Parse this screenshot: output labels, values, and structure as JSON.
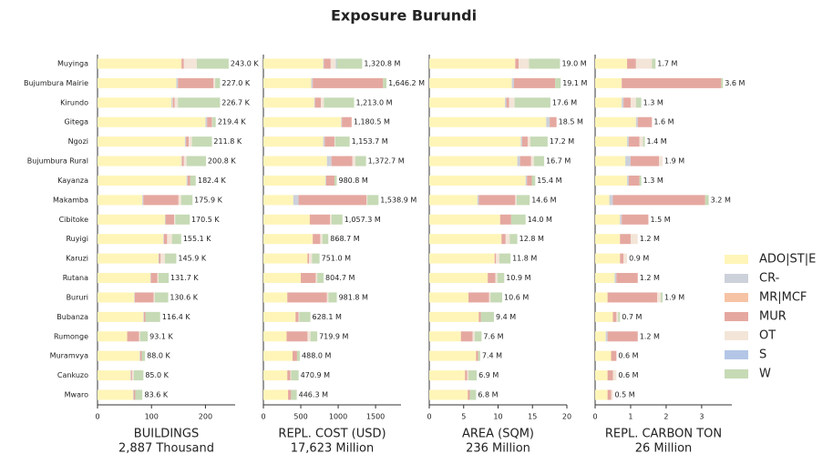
{
  "title": "Exposure Burundi",
  "chart_data": [
    {
      "type": "stacked-barh",
      "xlabel": "BUILDINGS",
      "subtitle": "2,887 Thousand",
      "categories": [
        "Muyinga",
        "Bujumbura Mairie",
        "Kirundo",
        "Gitega",
        "Ngozi",
        "Bujumbura Rural",
        "Kayanza",
        "Makamba",
        "Cibitoke",
        "Ruyigi",
        "Karuzi",
        "Rutana",
        "Bururi",
        "Bubanza",
        "Rumonge",
        "Muramvya",
        "Cankuzo",
        "Mwaro"
      ],
      "xlim": [
        0,
        255
      ],
      "xticks": [
        0,
        100,
        200
      ],
      "series": [
        {
          "name": "ADO|ST|E",
          "color": "#fff5b8",
          "values": [
            155,
            146,
            137,
            200,
            162,
            155,
            165,
            83,
            125,
            122,
            113,
            98,
            68,
            85,
            55,
            78,
            61,
            66
          ]
        },
        {
          "name": "CR-",
          "color": "#ccd1da",
          "values": [
            0,
            3,
            2,
            3,
            2,
            1,
            2,
            2,
            1,
            1,
            1,
            1,
            1,
            1,
            0,
            1,
            1,
            1
          ]
        },
        {
          "name": "MR|MCF",
          "color": "#f6c3a5",
          "values": [
            1,
            0,
            1,
            0,
            0,
            1,
            0,
            0,
            0,
            0,
            0,
            0,
            0,
            0,
            0,
            0,
            0,
            0
          ]
        },
        {
          "name": "MUR",
          "color": "#e5a8a0",
          "values": [
            4,
            66,
            3,
            9,
            5,
            3,
            5,
            65,
            16,
            6,
            3,
            12,
            35,
            3,
            22,
            3,
            2,
            3
          ]
        },
        {
          "name": "OT",
          "color": "#f3e5d8",
          "values": [
            24,
            3,
            6,
            1,
            6,
            5,
            0,
            5,
            2,
            9,
            8,
            2,
            2,
            0,
            2,
            0,
            3,
            0
          ]
        },
        {
          "name": "S",
          "color": "#b3c6e6",
          "values": [
            0,
            0,
            0,
            0,
            0,
            0,
            0,
            0,
            0,
            0,
            0,
            0,
            0,
            0,
            0,
            0,
            0,
            0
          ]
        },
        {
          "name": "W",
          "color": "#c6dab5",
          "values": [
            59,
            9,
            78,
            6,
            37,
            36,
            10,
            21,
            27,
            17,
            21,
            19,
            25,
            27,
            14,
            6,
            18,
            13
          ]
        }
      ],
      "totals": {
        "values": [
          243.0,
          227.0,
          226.7,
          219.4,
          211.8,
          200.8,
          182.4,
          175.9,
          170.5,
          155.1,
          145.9,
          131.7,
          130.6,
          116.4,
          93.1,
          88.0,
          85.0,
          83.6
        ],
        "value_labels": [
          "243.0 K",
          "227.0 K",
          "226.7 K",
          "219.4 K",
          "211.8 K",
          "200.8 K",
          "182.4 K",
          "175.9 K",
          "170.5 K",
          "155.1 K",
          "145.9 K",
          "131.7 K",
          "130.6 K",
          "116.4 K",
          "93.1 K",
          "88.0 K",
          "85.0 K",
          "83.6 K"
        ]
      }
    },
    {
      "type": "stacked-barh",
      "xlabel": "REPL. COST (USD)",
      "subtitle": "17,623 Million",
      "xlim": [
        0,
        1840
      ],
      "xticks": [
        0,
        500,
        1000,
        1500
      ],
      "series": [
        {
          "name": "ADO|ST|E",
          "color": "#fff5b8",
          "values": [
            800,
            640,
            680,
            1040,
            800,
            850,
            830,
            400,
            620,
            660,
            590,
            500,
            320,
            430,
            310,
            390,
            320,
            330
          ]
        },
        {
          "name": "CR-",
          "color": "#ccd1da",
          "values": [
            10,
            20,
            10,
            10,
            20,
            60,
            10,
            70,
            0,
            0,
            0,
            0,
            0,
            0,
            0,
            0,
            0,
            0
          ]
        },
        {
          "name": "MR|MCF",
          "color": "#f6c3a5",
          "values": [
            0,
            0,
            0,
            0,
            0,
            0,
            0,
            0,
            0,
            0,
            0,
            0,
            0,
            0,
            0,
            0,
            0,
            0
          ]
        },
        {
          "name": "MUR",
          "color": "#e5a8a0",
          "values": [
            90,
            940,
            80,
            130,
            130,
            280,
            110,
            910,
            270,
            100,
            20,
            200,
            530,
            40,
            280,
            60,
            40,
            40
          ]
        },
        {
          "name": "OT",
          "color": "#f3e5d8",
          "values": [
            70,
            0,
            40,
            0,
            10,
            40,
            0,
            10,
            20,
            30,
            40,
            20,
            20,
            10,
            40,
            0,
            10,
            0
          ]
        },
        {
          "name": "S",
          "color": "#b3c6e6",
          "values": [
            10,
            0,
            0,
            0,
            0,
            0,
            0,
            0,
            0,
            0,
            0,
            0,
            0,
            0,
            0,
            0,
            0,
            0
          ]
        },
        {
          "name": "W",
          "color": "#c6dab5",
          "values": [
            340.8,
            46.2,
            403,
            0.5,
            193.7,
            142.7,
            30.8,
            148.9,
            147.3,
            78.7,
            101,
            84.7,
            111.8,
            148.1,
            89.9,
            38,
            100.9,
            76.3
          ]
        }
      ],
      "totals": {
        "values": [
          1320.8,
          1646.2,
          1213.0,
          1180.5,
          1153.7,
          1372.7,
          980.8,
          1538.9,
          1057.3,
          868.7,
          751.0,
          804.7,
          981.8,
          628.1,
          719.9,
          488.0,
          470.9,
          446.3
        ],
        "value_labels": [
          "1,320.8 M",
          "1,646.2 M",
          "1,213.0 M",
          "1,180.5 M",
          "1,153.7 M",
          "1,372.7 M",
          "980.8 M",
          "1,538.9 M",
          "1,057.3 M",
          "868.7 M",
          "751.0 M",
          "804.7 M",
          "981.8 M",
          "628.1 M",
          "719.9 M",
          "488.0 M",
          "470.9 M",
          "446.3 M"
        ]
      }
    },
    {
      "type": "stacked-barh",
      "xlabel": "AREA (SQM)",
      "subtitle": "236 Million",
      "xlim": [
        0,
        20
      ],
      "xticks": [
        0,
        5,
        10,
        15,
        20
      ],
      "series": [
        {
          "name": "ADO|ST|E",
          "color": "#fff5b8",
          "values": [
            12.5,
            12,
            11,
            17,
            13.3,
            12.8,
            14,
            7,
            10.3,
            10.5,
            9.5,
            8.5,
            5.7,
            7.2,
            4.6,
            6.8,
            5.2,
            5.6
          ]
        },
        {
          "name": "CR-",
          "color": "#ccd1da",
          "values": [
            0,
            0.3,
            0.2,
            0.5,
            0.2,
            0.4,
            0.2,
            0.2,
            0,
            0,
            0,
            0,
            0,
            0,
            0,
            0,
            0,
            0
          ]
        },
        {
          "name": "MR|MCF",
          "color": "#f6c3a5",
          "values": [
            0,
            0,
            0,
            0,
            0,
            0,
            0,
            0,
            0,
            0,
            0,
            0,
            0,
            0,
            0,
            0,
            0,
            0
          ]
        },
        {
          "name": "MUR",
          "color": "#e5a8a0",
          "values": [
            0.5,
            6,
            0.4,
            1,
            0.8,
            1.6,
            0.7,
            5.3,
            1.6,
            0.6,
            0.2,
            1.1,
            3,
            0.3,
            1.7,
            0.3,
            0.3,
            0.3
          ]
        },
        {
          "name": "OT",
          "color": "#f3e5d8",
          "values": [
            1.5,
            0,
            0.8,
            0,
            0.4,
            0.4,
            0,
            0.2,
            0,
            0.6,
            0.5,
            0.3,
            0.2,
            0,
            0.3,
            0,
            0.2,
            0
          ]
        },
        {
          "name": "S",
          "color": "#b3c6e6",
          "values": [
            0,
            0,
            0,
            0,
            0,
            0,
            0,
            0,
            0,
            0,
            0,
            0,
            0,
            0,
            0,
            0,
            0,
            0
          ]
        },
        {
          "name": "W",
          "color": "#c6dab5",
          "values": [
            4.5,
            0.8,
            5.2,
            0,
            2.5,
            1.5,
            0.5,
            1.9,
            2.1,
            1.1,
            1.6,
            1,
            1.7,
            1.9,
            1,
            0.3,
            1.2,
            0.9
          ]
        }
      ],
      "totals": {
        "values": [
          19.0,
          19.1,
          17.6,
          18.5,
          17.2,
          16.7,
          15.4,
          14.6,
          14.0,
          12.8,
          11.8,
          10.9,
          10.6,
          9.4,
          7.6,
          7.4,
          6.9,
          6.8
        ],
        "value_labels": [
          "19.0 M",
          "19.1 M",
          "17.6 M",
          "18.5 M",
          "17.2 M",
          "16.7 M",
          "15.4 M",
          "14.6 M",
          "14.0 M",
          "12.8 M",
          "11.8 M",
          "10.9 M",
          "10.6 M",
          "9.4 M",
          "7.6 M",
          "7.4 M",
          "6.9 M",
          "6.8 M"
        ]
      }
    },
    {
      "type": "stacked-barh",
      "xlabel": "REPL. CARBON TON",
      "subtitle": "26 Million",
      "xlim": [
        0,
        3.85
      ],
      "xticks": [
        0,
        1,
        2,
        3
      ],
      "series": [
        {
          "name": "ADO|ST|E",
          "color": "#fff5b8",
          "values": [
            0.9,
            0.75,
            0.75,
            1.15,
            0.9,
            0.85,
            0.9,
            0.4,
            0.7,
            0.7,
            0.7,
            0.55,
            0.35,
            0.5,
            0.3,
            0.45,
            0.35,
            0.35
          ]
        },
        {
          "name": "CR-",
          "color": "#ccd1da",
          "values": [
            0,
            0,
            0.05,
            0.05,
            0.05,
            0.15,
            0.05,
            0.1,
            0.05,
            0,
            0,
            0.05,
            0,
            0,
            0.05,
            0,
            0,
            0
          ]
        },
        {
          "name": "MR|MCF",
          "color": "#f6c3a5",
          "values": [
            0,
            0,
            0,
            0,
            0,
            0,
            0,
            0,
            0,
            0,
            0,
            0,
            0,
            0,
            0,
            0,
            0,
            0
          ]
        },
        {
          "name": "MUR",
          "color": "#e5a8a0",
          "values": [
            0.25,
            2.8,
            0.2,
            0.4,
            0.3,
            0.8,
            0.3,
            2.6,
            0.75,
            0.3,
            0.1,
            0.6,
            1.4,
            0.1,
            0.85,
            0.15,
            0.15,
            0.1
          ]
        },
        {
          "name": "OT",
          "color": "#f3e5d8",
          "values": [
            0.45,
            0,
            0.15,
            0,
            0.1,
            0.1,
            0,
            0,
            0,
            0.2,
            0.1,
            0,
            0.1,
            0.05,
            0,
            0,
            0.1,
            0.05
          ]
        },
        {
          "name": "S",
          "color": "#b3c6e6",
          "values": [
            0,
            0,
            0,
            0,
            0,
            0,
            0,
            0,
            0,
            0,
            0,
            0,
            0,
            0,
            0,
            0,
            0,
            0
          ]
        },
        {
          "name": "W",
          "color": "#c6dab5",
          "values": [
            0.1,
            0.05,
            0.15,
            0,
            0.05,
            0,
            0.05,
            0.1,
            0,
            0,
            0,
            0,
            0.05,
            0.05,
            0,
            0,
            0,
            0
          ]
        }
      ],
      "totals": {
        "values": [
          1.7,
          3.6,
          1.3,
          1.6,
          1.4,
          1.9,
          1.3,
          3.2,
          1.5,
          1.2,
          0.9,
          1.2,
          1.9,
          0.7,
          1.2,
          0.6,
          0.6,
          0.5
        ],
        "value_labels": [
          "1.7 M",
          "3.6 M",
          "1.3 M",
          "1.6 M",
          "1.4 M",
          "1.9 M",
          "1.3 M",
          "3.2 M",
          "1.5 M",
          "1.2 M",
          "0.9 M",
          "1.2 M",
          "1.9 M",
          "0.7 M",
          "1.2 M",
          "0.6 M",
          "0.6 M",
          "0.5 M"
        ]
      }
    }
  ]
}
